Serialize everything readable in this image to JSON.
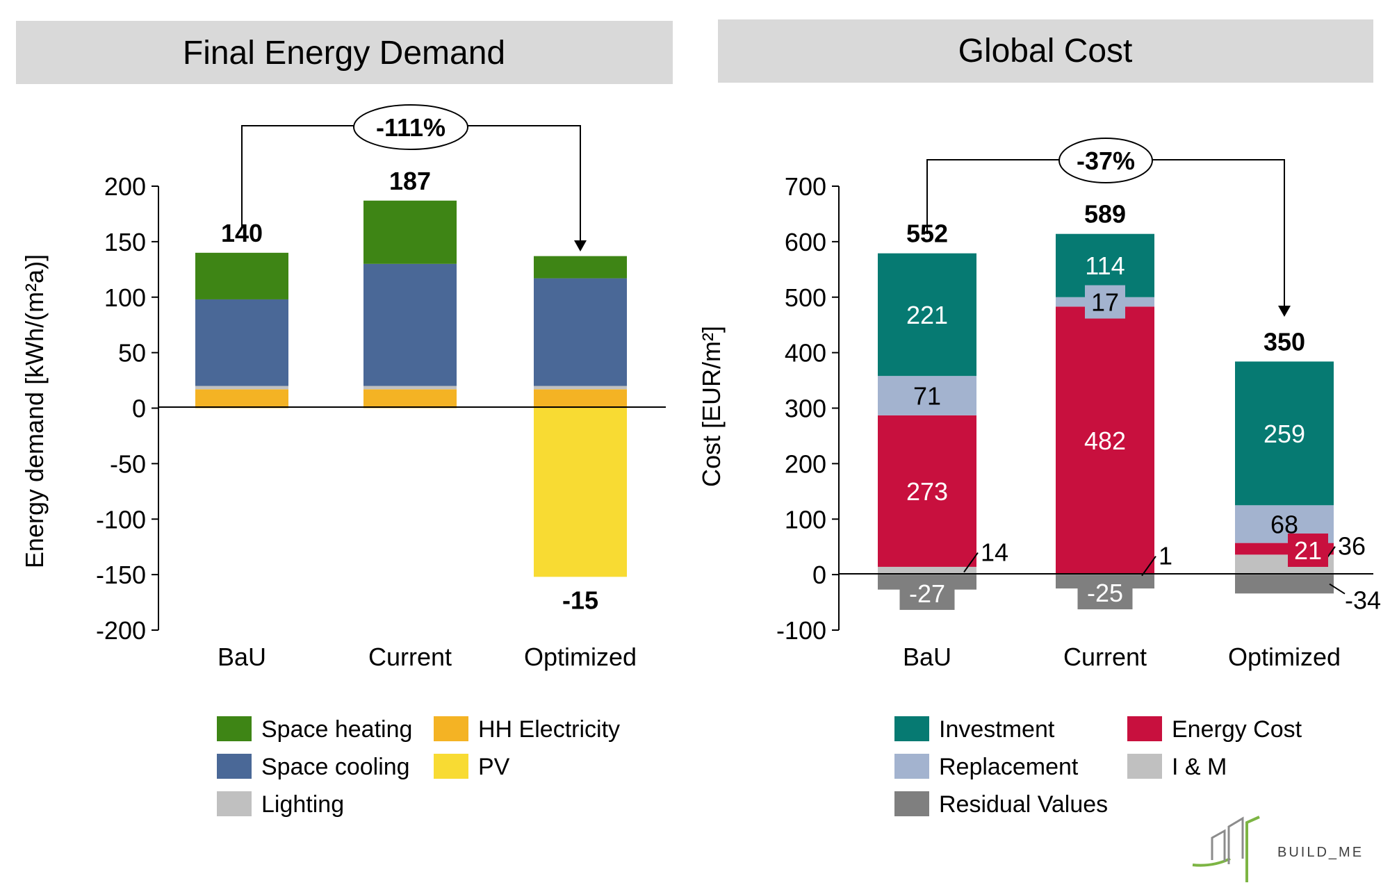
{
  "logo": {
    "text": "BUILD_ME"
  },
  "chart_data": [
    {
      "type": "bar",
      "title": "Final Energy Demand",
      "ylabel": "Energy demand [kWh/(m²a)]",
      "ylim": [
        -200,
        200
      ],
      "yticks": [
        -200,
        -150,
        -100,
        -50,
        0,
        50,
        100,
        150,
        200
      ],
      "categories": [
        "BaU",
        "Current",
        "Optimized"
      ],
      "series": [
        {
          "name": "HH Electricity",
          "color": "#f4b324",
          "values": [
            17,
            17,
            17
          ]
        },
        {
          "name": "Lighting",
          "color": "#c0c0c0",
          "values": [
            3,
            3,
            3
          ]
        },
        {
          "name": "Space cooling",
          "color": "#4a6897",
          "values": [
            78,
            110,
            97
          ]
        },
        {
          "name": "Space heating",
          "color": "#3e8515",
          "values": [
            42,
            57,
            20
          ]
        },
        {
          "name": "PV",
          "color": "#f8db33",
          "values": [
            0,
            0,
            -152
          ]
        }
      ],
      "totals": [
        "140",
        "187",
        "-15"
      ],
      "comparison": {
        "label": "-111%",
        "from": "BaU",
        "to": "Optimized"
      },
      "legend": {
        "placement": "bottom",
        "order": [
          "Space heating",
          "HH Electricity",
          "Space cooling",
          "PV",
          "Lighting"
        ]
      }
    },
    {
      "type": "bar",
      "title": "Global Cost",
      "ylabel": "Cost [EUR/m²]",
      "ylim": [
        -100,
        700
      ],
      "yticks": [
        -100,
        0,
        100,
        200,
        300,
        400,
        500,
        600,
        700
      ],
      "categories": [
        "BaU",
        "Current",
        "Optimized"
      ],
      "series": [
        {
          "name": "I & M",
          "color": "#c0c0c0",
          "values": [
            14,
            1,
            36
          ],
          "labels": [
            "14",
            "1",
            "36"
          ]
        },
        {
          "name": "Energy Cost",
          "color": "#c8103e",
          "values": [
            273,
            482,
            21
          ],
          "labels": [
            "273",
            "482",
            "21"
          ]
        },
        {
          "name": "Replacement",
          "color": "#a3b3cf",
          "values": [
            71,
            17,
            68
          ],
          "labels": [
            "71",
            "17",
            "68"
          ]
        },
        {
          "name": "Investment",
          "color": "#067a72",
          "values": [
            221,
            114,
            259
          ],
          "labels": [
            "221",
            "114",
            "259"
          ]
        },
        {
          "name": "Residual Values",
          "color": "#7f7f7f",
          "values": [
            -27,
            -25,
            -34
          ],
          "labels": [
            "-27",
            "-25",
            "-34"
          ]
        }
      ],
      "totals": [
        "552",
        "589",
        "350"
      ],
      "comparison": {
        "label": "-37%",
        "from": "BaU",
        "to": "Optimized"
      },
      "legend": {
        "placement": "bottom",
        "order": [
          "Investment",
          "Energy Cost",
          "Replacement",
          "I & M",
          "Residual Values"
        ]
      }
    }
  ]
}
